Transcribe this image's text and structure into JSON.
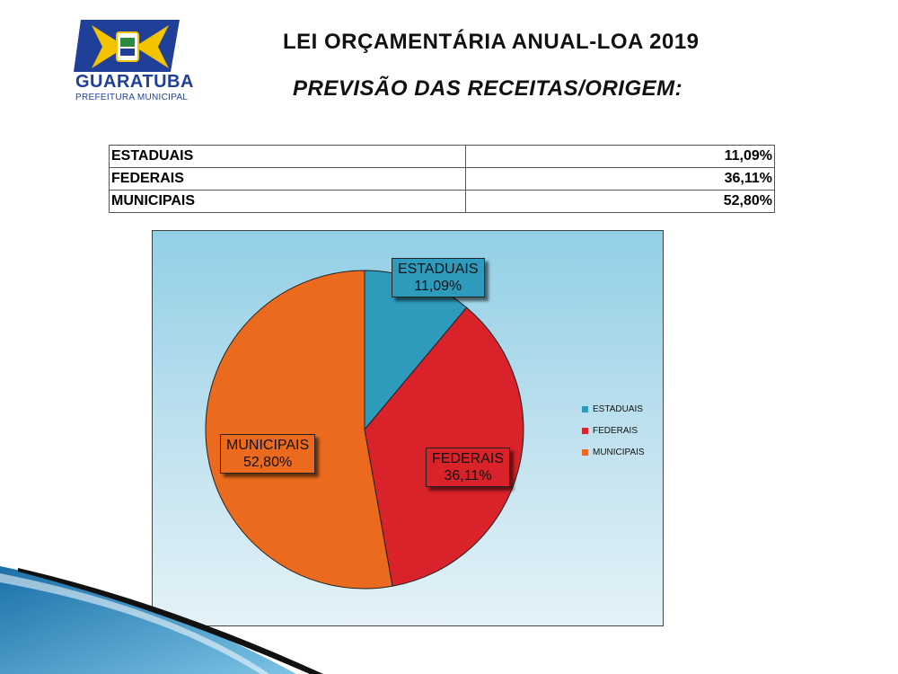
{
  "logo": {
    "wordmark": "GUARATUBA",
    "subtitle": "PREFEITURA MUNICIPAL"
  },
  "header": {
    "title": "LEI ORÇAMENTÁRIA ANUAL-LOA 2019",
    "subtitle": "PREVISÃO DAS RECEITAS/ORIGEM:"
  },
  "table": {
    "rows": [
      {
        "label": "ESTADUAIS",
        "value": "11,09%"
      },
      {
        "label": "FEDERAIS",
        "value": "36,11%"
      },
      {
        "label": "MUNICIPAIS",
        "value": "52,80%"
      }
    ]
  },
  "chart_data": {
    "type": "pie",
    "title": "",
    "categories": [
      "ESTADUAIS",
      "FEDERAIS",
      "MUNICIPAIS"
    ],
    "values": [
      11.09,
      36.11,
      52.8
    ],
    "value_labels": [
      "11,09%",
      "36,11%",
      "52,80%"
    ],
    "colors": [
      "#2e9bbd",
      "#d9222a",
      "#eb6a1e"
    ],
    "legend_placement": "right",
    "start_angle": "top, clockwise"
  }
}
